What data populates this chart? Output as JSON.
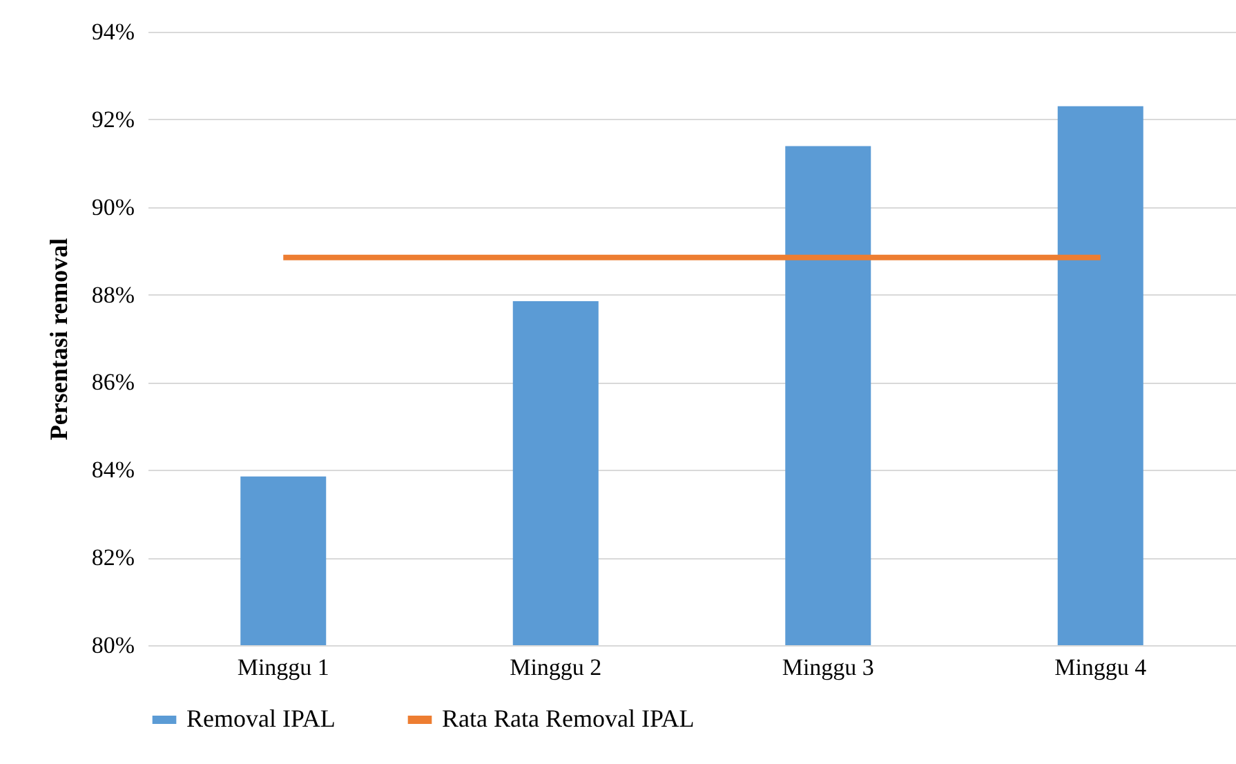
{
  "chart_data": {
    "type": "bar",
    "ylabel": "Persentasi removal",
    "categories": [
      "Minggu 1",
      "Minggu 2",
      "Minggu 3",
      "Minggu 4"
    ],
    "series": [
      {
        "name": "Removal IPAL",
        "color": "#5b9bd5",
        "values": [
          83.85,
          87.85,
          91.39,
          92.3
        ]
      },
      {
        "name": "Rata Rata Removal IPAL",
        "type": "line",
        "color": "#ed7d31",
        "values": [
          88.85,
          88.85,
          88.85,
          88.85
        ]
      }
    ],
    "ylim": [
      80,
      94
    ],
    "yticks": [
      {
        "value": 80,
        "label": "80%"
      },
      {
        "value": 82,
        "label": "82%"
      },
      {
        "value": 84,
        "label": "84%"
      },
      {
        "value": 86,
        "label": "86%"
      },
      {
        "value": 88,
        "label": "88%"
      },
      {
        "value": 90,
        "label": "90%"
      },
      {
        "value": 92,
        "label": "92%"
      },
      {
        "value": 94,
        "label": "94%"
      }
    ],
    "grid": "y",
    "legend": "bottom"
  }
}
